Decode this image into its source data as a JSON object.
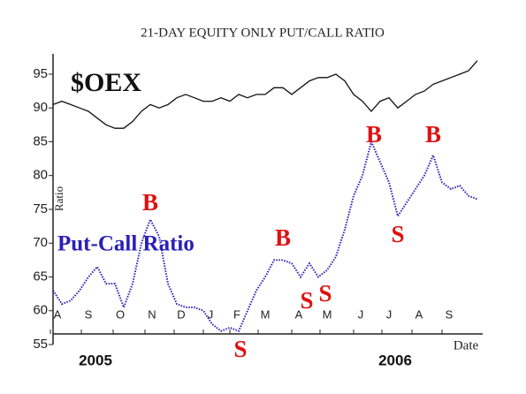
{
  "chart_data": {
    "type": "line",
    "title": "21-DAY EQUITY ONLY PUT/CALL RATIO",
    "y_label": "Ratio",
    "x_label": "Date",
    "months": [
      "A",
      "S",
      "O",
      "N",
      "D",
      "J",
      "F",
      "M",
      "A",
      "M",
      "J",
      "J",
      "A",
      "S"
    ],
    "years": [
      "2005",
      "2006"
    ],
    "ylim": [
      55,
      98
    ],
    "yticks": [
      55,
      60,
      65,
      70,
      75,
      80,
      85,
      90,
      95
    ],
    "series": [
      {
        "name": "$OEX",
        "color": "#111111",
        "style": "solid",
        "values": [
          90.5,
          91,
          90.5,
          90,
          89.5,
          88.5,
          87.5,
          87,
          87,
          88,
          89.5,
          90.5,
          90,
          90.5,
          91.5,
          92,
          91.5,
          91,
          91,
          91.5,
          91,
          92,
          91.5,
          92,
          92,
          93,
          93,
          92,
          93,
          94,
          94.5,
          94.5,
          95,
          94,
          92,
          91,
          89.5,
          91,
          91.5,
          90,
          91,
          92,
          92.5,
          93.5,
          94,
          94.5,
          95,
          95.5,
          97
        ]
      },
      {
        "name": "Put-Call Ratio",
        "color": "#2a1fb8",
        "style": "dotted",
        "values": [
          63,
          61,
          61.5,
          63,
          65,
          66.5,
          64,
          64,
          60.5,
          64,
          70,
          73.5,
          71,
          64,
          61,
          60.5,
          60.5,
          60,
          58,
          57,
          57.5,
          57,
          60,
          63,
          65,
          67.5,
          67.5,
          67,
          65,
          67,
          65,
          66,
          68,
          72,
          77,
          80,
          85,
          82,
          79,
          74,
          76,
          78,
          80,
          83,
          79,
          78,
          78.5,
          77,
          76.5
        ]
      }
    ],
    "annotations": [
      {
        "text": "B",
        "color": "#e01010"
      },
      {
        "text": "B",
        "color": "#e01010"
      },
      {
        "text": "B",
        "color": "#e01010"
      },
      {
        "text": "B",
        "color": "#e01010"
      },
      {
        "text": "S",
        "color": "#e01010"
      },
      {
        "text": "S",
        "color": "#e01010"
      },
      {
        "text": "S",
        "color": "#e01010"
      },
      {
        "text": "S",
        "color": "#e01010"
      }
    ]
  }
}
